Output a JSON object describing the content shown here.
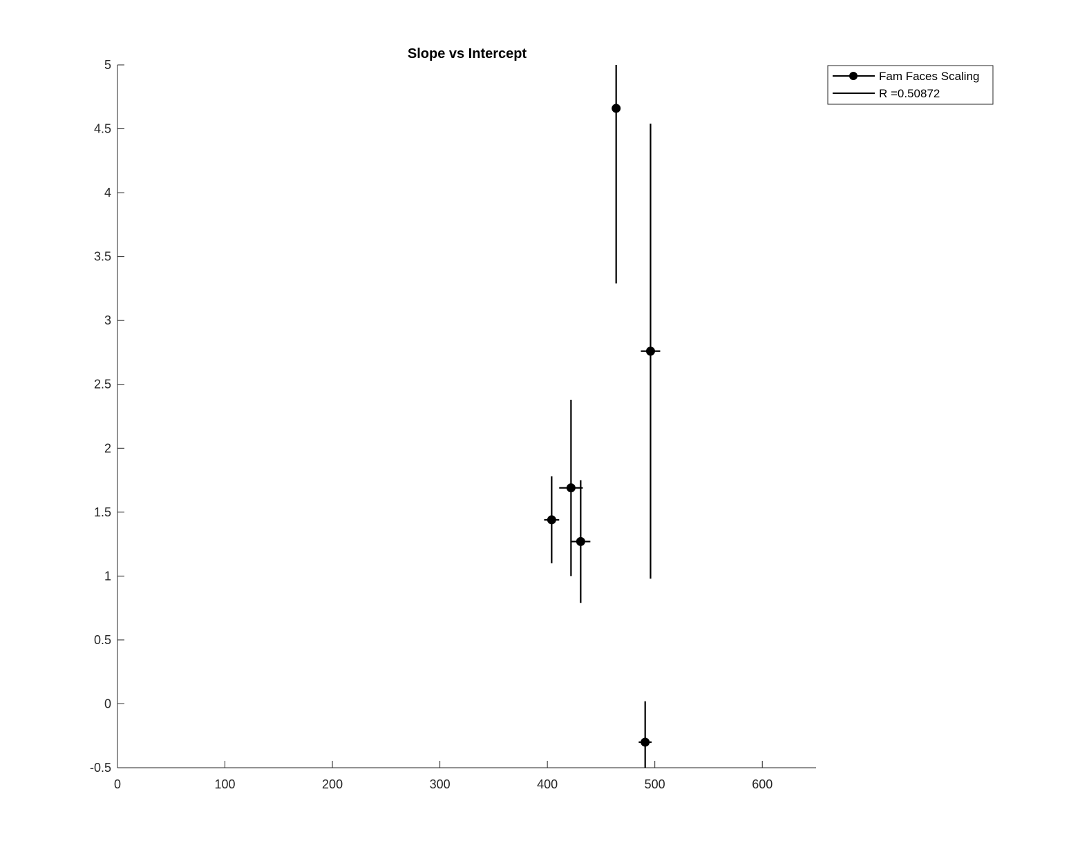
{
  "chart_data": {
    "type": "scatter",
    "title": "Slope vs Intercept",
    "xlabel": "",
    "ylabel": "",
    "xlim": [
      0,
      650
    ],
    "ylim": [
      -0.5,
      5
    ],
    "xticks": [
      "0",
      "100",
      "200",
      "300",
      "400",
      "500",
      "600"
    ],
    "yticks": [
      "-0.5",
      "0",
      "0.5",
      "1",
      "1.5",
      "2",
      "2.5",
      "3",
      "3.5",
      "4",
      "4.5",
      "5"
    ],
    "grid": false,
    "legend_position": "outside-top-right",
    "series": [
      {
        "name": "Fam Faces Scaling",
        "marker": "filled-circle",
        "color": "#000000",
        "points": [
          {
            "x": 404,
            "y": 1.44,
            "xerr": 7,
            "ylow": 1.1,
            "yhigh": 1.78
          },
          {
            "x": 422,
            "y": 1.69,
            "xerr": 11,
            "ylow": 1.0,
            "yhigh": 2.38
          },
          {
            "x": 431,
            "y": 1.27,
            "xerr": 9,
            "ylow": 0.79,
            "yhigh": 1.75
          },
          {
            "x": 464,
            "y": 4.66,
            "xerr": 3,
            "ylow": 3.29,
            "yhigh": 5.0
          },
          {
            "x": 496,
            "y": 2.76,
            "xerr": 9,
            "ylow": 0.98,
            "yhigh": 4.54
          },
          {
            "x": 491,
            "y": -0.3,
            "xerr": 6,
            "ylow": -0.5,
            "yhigh": 0.02
          }
        ]
      }
    ],
    "legend": [
      {
        "label": "Fam Faces Scaling",
        "style": "line-with-marker"
      },
      {
        "label": "R =0.50872",
        "style": "line"
      }
    ]
  }
}
